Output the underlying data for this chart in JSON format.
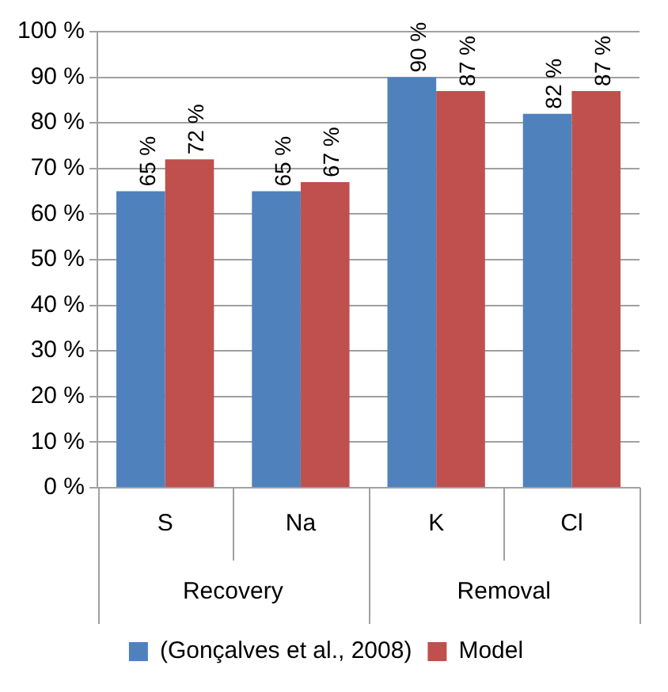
{
  "chart_data": {
    "type": "bar",
    "categories": [
      "S",
      "Na",
      "K",
      "Cl"
    ],
    "series": [
      {
        "name": "(Gonçalves et al., 2008)",
        "color": "#4f81bd",
        "values": [
          65,
          65,
          90,
          82
        ],
        "value_labels": [
          "65 %",
          "65 %",
          "90 %",
          "82 %"
        ]
      },
      {
        "name": "Model",
        "color": "#c0504d",
        "values": [
          72,
          67,
          87,
          87
        ],
        "value_labels": [
          "72 %",
          "67 %",
          "87 %",
          "87 %"
        ]
      }
    ],
    "ylim": [
      0,
      100
    ],
    "yticks": [
      {
        "value": 0,
        "label": "0 %"
      },
      {
        "value": 10,
        "label": "10 %"
      },
      {
        "value": 20,
        "label": "20 %"
      },
      {
        "value": 30,
        "label": "30 %"
      },
      {
        "value": 40,
        "label": "40 %"
      },
      {
        "value": 50,
        "label": "50 %"
      },
      {
        "value": 60,
        "label": "60 %"
      },
      {
        "value": 70,
        "label": "70 %"
      },
      {
        "value": 80,
        "label": "80 %"
      },
      {
        "value": 90,
        "label": "90 %"
      },
      {
        "value": 100,
        "label": "100 %"
      }
    ],
    "annotations": [
      "Recovery",
      "Removal"
    ],
    "grid": "y",
    "legend": "bottom"
  }
}
